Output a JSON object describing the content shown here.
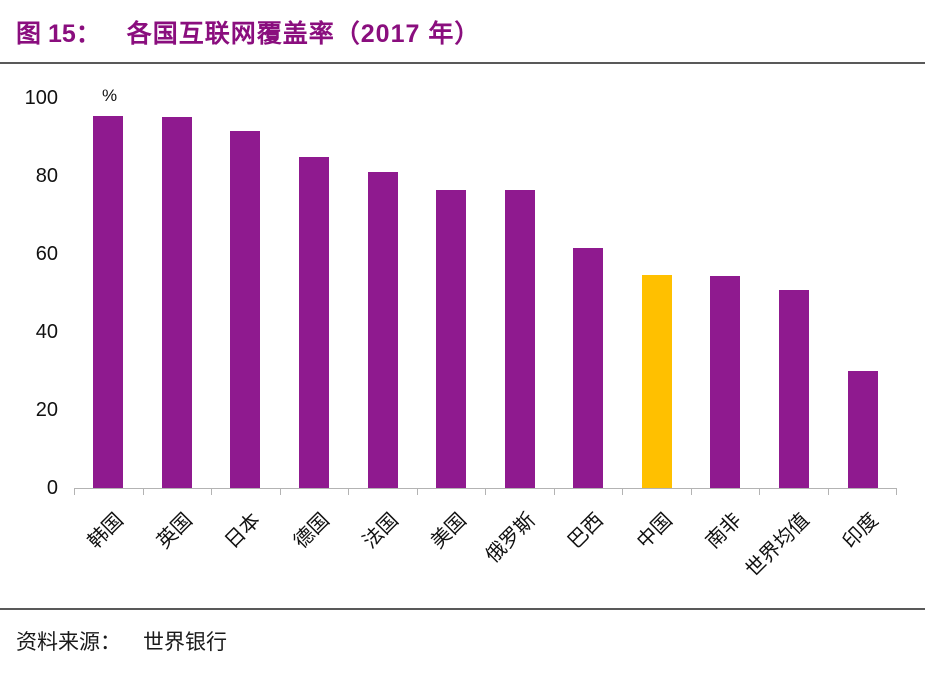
{
  "header": {
    "title_prefix": "图 15：",
    "title_text": "各国互联网覆盖率（2017 年）"
  },
  "footer": {
    "source_label": "资料来源：",
    "source_text": "世界银行"
  },
  "colors": {
    "title": "#8A0E7E",
    "bar": "#8F1A8F",
    "highlight": "#FFC000",
    "divider": "#595959",
    "axis": "#B3B3B3"
  },
  "chart_data": {
    "type": "bar",
    "title": "各国互联网覆盖率（2017 年）",
    "unit_label": "%",
    "categories": [
      "韩国",
      "英国",
      "日本",
      "德国",
      "法国",
      "美国",
      "俄罗斯",
      "巴西",
      "中国",
      "南非",
      "世界均值",
      "印度"
    ],
    "values": [
      95.5,
      95.1,
      91.5,
      85.0,
      81.0,
      76.5,
      76.3,
      61.5,
      54.5,
      54.4,
      50.8,
      30.0
    ],
    "ylim": [
      0,
      100
    ],
    "yticks": [
      0,
      20,
      40,
      60,
      80,
      100
    ],
    "grid": false,
    "legend": false,
    "bar_color": "#8F1A8F",
    "highlight_color": "#FFC000",
    "highlight_index": 8,
    "highlight_category": "中国"
  }
}
